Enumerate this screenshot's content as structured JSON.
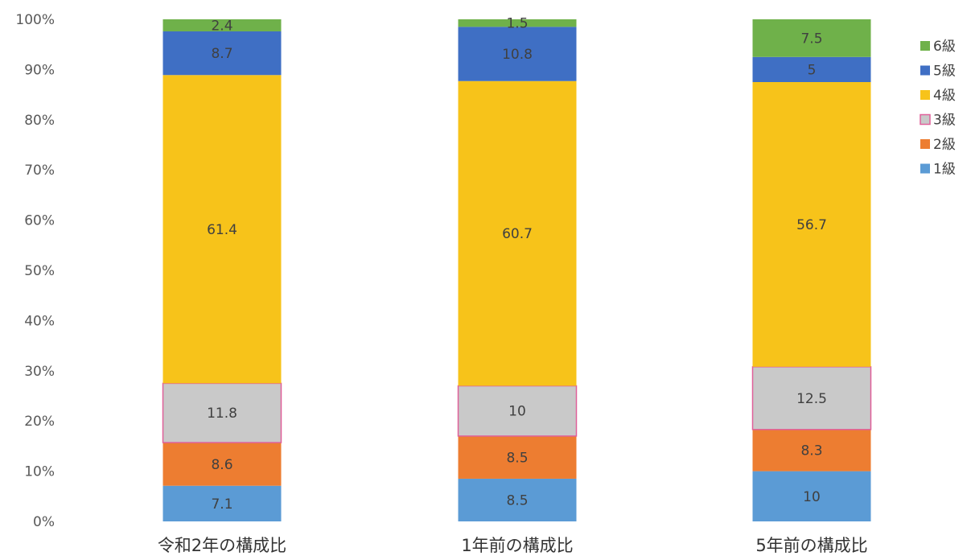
{
  "chart_data": {
    "type": "bar",
    "stacked": true,
    "percent": true,
    "categories": [
      "令和2年の構成比",
      "1年前の構成比",
      "5年前の構成比"
    ],
    "series": [
      {
        "name": "1級",
        "color": "#5B9BD5",
        "values": [
          7.1,
          8.5,
          10
        ],
        "labels": [
          "7.1",
          "8.5",
          "10"
        ]
      },
      {
        "name": "2級",
        "color": "#ED7D31",
        "values": [
          8.6,
          8.5,
          8.3
        ],
        "labels": [
          "8.6",
          "8.5",
          "8.3"
        ]
      },
      {
        "name": "3級",
        "color": "#C9C9C9",
        "border": "#E0609A",
        "values": [
          11.8,
          10,
          12.5
        ],
        "labels": [
          "11.8",
          "10",
          "12.5"
        ]
      },
      {
        "name": "4級",
        "color": "#F7C31A",
        "values": [
          61.4,
          60.7,
          56.7
        ],
        "labels": [
          "61.4",
          "60.7",
          "56.7"
        ]
      },
      {
        "name": "5級",
        "color": "#3F6FC4",
        "values": [
          8.7,
          10.8,
          5
        ],
        "labels": [
          "8.7",
          "10.8",
          "5"
        ]
      },
      {
        "name": "6級",
        "color": "#6FB14A",
        "values": [
          2.4,
          1.5,
          7.5
        ],
        "labels": [
          "2.4",
          "1.5",
          "7.5"
        ]
      }
    ],
    "y_ticks": [
      "0%",
      "10%",
      "20%",
      "30%",
      "40%",
      "50%",
      "60%",
      "70%",
      "80%",
      "90%",
      "100%"
    ],
    "ylim": [
      0,
      100
    ],
    "grid": false,
    "legend_position": "right"
  }
}
